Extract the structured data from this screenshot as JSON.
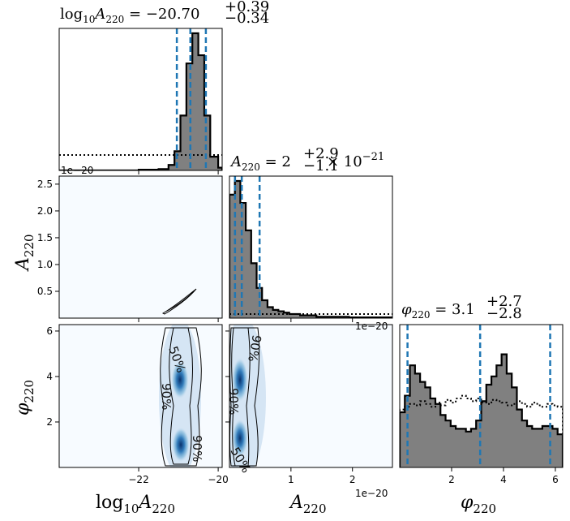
{
  "chart_data": {
    "type": "corner",
    "parameters": [
      "log10_A220",
      "A220",
      "phi220"
    ],
    "axis_labels": {
      "log10_A220": {
        "base": "log",
        "sub1": "10",
        "main": "A",
        "sub2": "220"
      },
      "A220": {
        "main": "A",
        "sub": "220"
      },
      "phi220": {
        "main": "φ",
        "sub": "220"
      }
    },
    "titles": {
      "log10_A220": {
        "base": "log",
        "sub1": "10",
        "main": "A",
        "sub2": "220",
        "eq": " = −20.70",
        "sup": "+0.39",
        "sub": "−0.34"
      },
      "A220": {
        "main": "A",
        "sub2": "220",
        "eq": " = 2",
        "sup": "+2.9",
        "sub": "−1.1",
        "tail": " × 10",
        "exp": "−21"
      },
      "phi220": {
        "main": "φ",
        "sub2": "220",
        "eq": " = 3.1",
        "sup": "+2.7",
        "sub": "−2.8"
      }
    },
    "offset_labels": {
      "A220_bottom": "1e−20",
      "A220_row": "1e−20",
      "A220_diag": "1e−20"
    },
    "ranges": {
      "log10_A220": [
        -24.0,
        -19.9
      ],
      "A220": [
        0.0,
        2.65e-20
      ],
      "phi220": [
        0.0,
        6.283
      ]
    },
    "ticks": {
      "log10_A220": {
        "values": [
          -22,
          -20
        ],
        "labels": [
          "−22",
          "−20"
        ]
      },
      "A220": {
        "values": [
          1e-20,
          2e-20
        ],
        "labels": [
          "1",
          "2"
        ]
      },
      "A220_row": {
        "values": [
          0.5,
          1.0,
          1.5,
          2.0,
          2.5
        ],
        "labels": [
          "0.5",
          "1.0",
          "1.5",
          "2.0",
          "2.5"
        ]
      },
      "phi220": {
        "values": [
          2,
          4,
          6
        ],
        "labels": [
          "2",
          "4",
          "6"
        ]
      }
    },
    "quantile_lines": {
      "log10_A220": [
        -21.04,
        -20.7,
        -20.31
      ],
      "A220": [
        9e-22,
        2e-21,
        4.9e-21
      ],
      "phi220": [
        0.3,
        3.1,
        5.8
      ]
    },
    "histograms": {
      "log10_A220": {
        "bins": [
          -24.0,
          -23.75,
          -23.5,
          -23.25,
          -23.0,
          -22.75,
          -22.5,
          -22.25,
          -22.0,
          -21.75,
          -21.5,
          -21.25,
          -21.1,
          -20.95,
          -20.8,
          -20.65,
          -20.5,
          -20.35,
          -20.2,
          -20.0,
          -19.9
        ],
        "counts": [
          0,
          0,
          0,
          0,
          0,
          0,
          0,
          0,
          0.5,
          0.5,
          1,
          4,
          14,
          40,
          78,
          100,
          84,
          40,
          10,
          2
        ],
        "prior_level": 0.1
      },
      "A220": {
        "counts": [
          90,
          100,
          84,
          64,
          40,
          22,
          13,
          8,
          6,
          5,
          4,
          3,
          3,
          2,
          2,
          2,
          1,
          1,
          1,
          1,
          1,
          1,
          0.5,
          0.5,
          0.5,
          0.5,
          0.5,
          0.5,
          0.5,
          0.5
        ],
        "prior_level": 0.8
      },
      "phi220": {
        "counts": [
          40,
          52,
          74,
          68,
          62,
          58,
          50,
          46,
          38,
          34,
          30,
          28,
          28,
          26,
          28,
          34,
          48,
          60,
          66,
          74,
          82,
          68,
          58,
          42,
          34,
          30,
          28,
          28,
          30,
          30,
          28,
          24
        ],
        "prior_counts": [
          42,
          44,
          46,
          45,
          48,
          46,
          44,
          47,
          45,
          49,
          47,
          50,
          52,
          50,
          48,
          50,
          47,
          46,
          49,
          48,
          47,
          45,
          46,
          48,
          46,
          44,
          47,
          45,
          44,
          46,
          45,
          44
        ]
      }
    },
    "contour_labels": [
      "50%",
      "90%",
      "90%",
      "90%",
      "90%",
      "90%",
      "50%"
    ],
    "colors": {
      "density": "#08519c",
      "quantile": "#1f77b4",
      "hist_fill": "#808080"
    }
  }
}
